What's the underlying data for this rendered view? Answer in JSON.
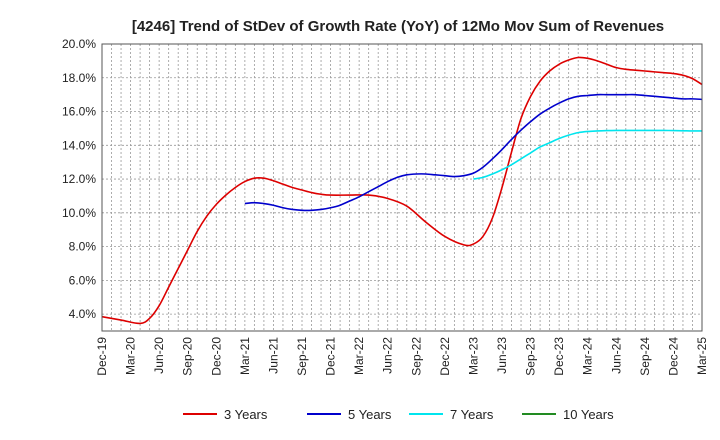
{
  "chart_data": {
    "type": "line",
    "title": "[4246]  Trend of StDev of Growth Rate (YoY) of 12Mo Mov Sum of Revenues",
    "xlabel": "",
    "ylabel": "",
    "ylim": [
      3.0,
      20.0
    ],
    "y_ticks": [
      4.0,
      6.0,
      8.0,
      10.0,
      12.0,
      14.0,
      16.0,
      18.0,
      20.0
    ],
    "y_tick_labels": [
      "4.0%",
      "6.0%",
      "8.0%",
      "10.0%",
      "12.0%",
      "14.0%",
      "16.0%",
      "18.0%",
      "20.0%"
    ],
    "x_tick_labels": [
      "Dec-19",
      "Mar-20",
      "Jun-20",
      "Sep-20",
      "Dec-20",
      "Mar-21",
      "Jun-21",
      "Sep-21",
      "Dec-21",
      "Mar-22",
      "Jun-22",
      "Sep-22",
      "Dec-22",
      "Mar-23",
      "Jun-23",
      "Sep-23",
      "Dec-23",
      "Mar-24",
      "Jun-24",
      "Sep-24",
      "Dec-24",
      "Mar-25"
    ],
    "x_index_note": "x values are month offsets from Dec-19",
    "x_max": 63,
    "grid": true,
    "legend_position": "bottom",
    "series": [
      {
        "name": "3 Years",
        "color": "#dd0000",
        "x": [
          0,
          2,
          4,
          5,
          6,
          7,
          8,
          9,
          10,
          11,
          12,
          13,
          14,
          15,
          16,
          17,
          18,
          19,
          20,
          21,
          22,
          23,
          24,
          26,
          28,
          30,
          32,
          34,
          36,
          38,
          39,
          40,
          41,
          42,
          43,
          44,
          45,
          46,
          47,
          48,
          49,
          50,
          51,
          52,
          53,
          54,
          55,
          56,
          57,
          58,
          59,
          60,
          61,
          62,
          63
        ],
        "values": [
          3.85,
          3.65,
          3.45,
          3.75,
          4.5,
          5.6,
          6.7,
          7.8,
          8.9,
          9.8,
          10.5,
          11.05,
          11.5,
          11.85,
          12.05,
          12.05,
          11.9,
          11.7,
          11.5,
          11.35,
          11.2,
          11.1,
          11.05,
          11.05,
          11.05,
          10.85,
          10.4,
          9.45,
          8.6,
          8.1,
          8.15,
          8.6,
          9.7,
          11.5,
          13.6,
          15.6,
          16.9,
          17.8,
          18.4,
          18.8,
          19.05,
          19.2,
          19.15,
          19.0,
          18.8,
          18.6,
          18.5,
          18.45,
          18.4,
          18.35,
          18.3,
          18.25,
          18.15,
          17.95,
          17.6
        ]
      },
      {
        "name": "5 Years",
        "color": "#0000cc",
        "x": [
          15,
          16,
          17,
          18,
          19,
          20,
          21,
          22,
          23,
          24,
          25,
          26,
          27,
          28,
          29,
          30,
          31,
          32,
          33,
          34,
          35,
          36,
          37,
          38,
          39,
          40,
          41,
          42,
          43,
          44,
          45,
          46,
          47,
          48,
          49,
          50,
          51,
          52,
          53,
          54,
          55,
          56,
          57,
          58,
          59,
          60,
          61,
          62,
          63
        ],
        "values": [
          10.55,
          10.6,
          10.55,
          10.45,
          10.3,
          10.2,
          10.15,
          10.15,
          10.2,
          10.3,
          10.45,
          10.7,
          10.95,
          11.25,
          11.55,
          11.85,
          12.1,
          12.25,
          12.3,
          12.3,
          12.25,
          12.2,
          12.15,
          12.2,
          12.35,
          12.7,
          13.2,
          13.75,
          14.35,
          14.9,
          15.4,
          15.85,
          16.2,
          16.5,
          16.75,
          16.9,
          16.95,
          17.0,
          17.0,
          17.0,
          17.0,
          17.0,
          16.95,
          16.9,
          16.85,
          16.8,
          16.75,
          16.75,
          16.72
        ]
      },
      {
        "name": "7 Years",
        "color": "#00e5ee",
        "x": [
          39,
          40,
          41,
          42,
          43,
          44,
          45,
          46,
          47,
          48,
          49,
          50,
          51,
          52,
          53,
          54,
          55,
          56,
          57,
          58,
          59,
          60,
          61,
          62,
          63
        ],
        "values": [
          12.0,
          12.1,
          12.3,
          12.55,
          12.85,
          13.2,
          13.55,
          13.9,
          14.15,
          14.4,
          14.6,
          14.75,
          14.82,
          14.85,
          14.87,
          14.88,
          14.88,
          14.88,
          14.88,
          14.88,
          14.88,
          14.87,
          14.86,
          14.85,
          14.85
        ]
      },
      {
        "name": "10 Years",
        "color": "#228b22",
        "x": [],
        "values": []
      }
    ]
  }
}
